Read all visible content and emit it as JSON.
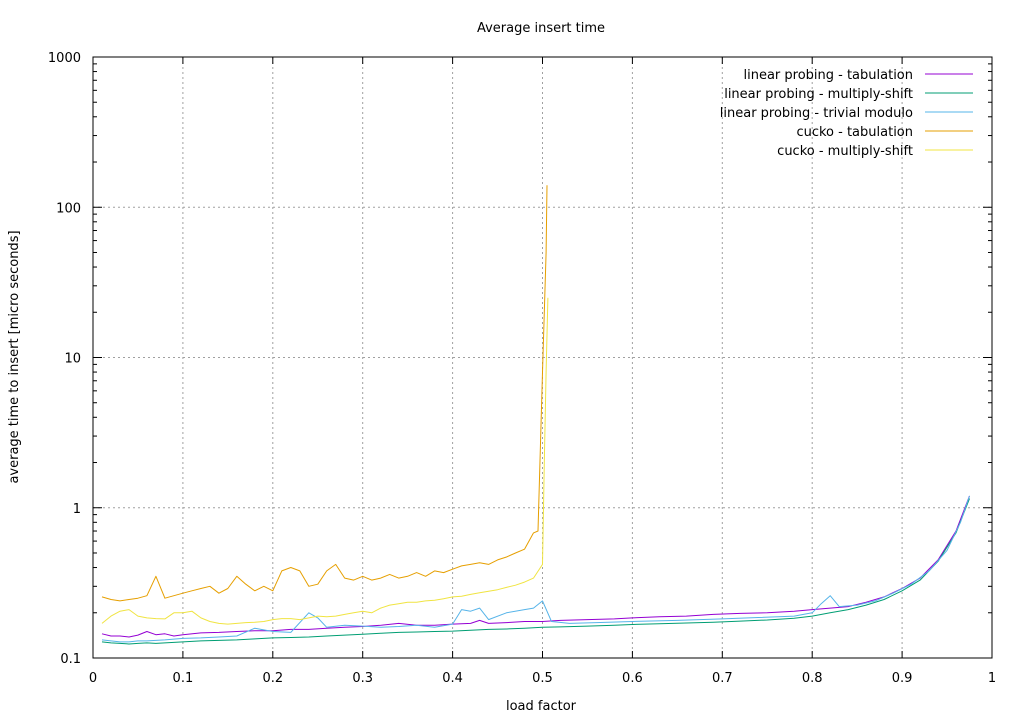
{
  "chart_data": {
    "type": "line",
    "title": "Average insert time",
    "xlabel": "load factor",
    "ylabel": "average time to insert [micro seconds]",
    "xlim": [
      0,
      1
    ],
    "ylim": [
      0.1,
      1000
    ],
    "yscale": "log",
    "grid": true,
    "legend_position": "top-right",
    "x_ticks": [
      "0",
      "0.1",
      "0.2",
      "0.3",
      "0.4",
      "0.5",
      "0.6",
      "0.7",
      "0.8",
      "0.9",
      "1"
    ],
    "y_ticks": [
      "0.1",
      "1",
      "10",
      "100",
      "1000"
    ],
    "series": [
      {
        "name": "linear probing - tabulation",
        "color": "#9400d3",
        "points": [
          [
            0.01,
            0.145
          ],
          [
            0.02,
            0.14
          ],
          [
            0.03,
            0.14
          ],
          [
            0.04,
            0.138
          ],
          [
            0.05,
            0.142
          ],
          [
            0.06,
            0.15
          ],
          [
            0.07,
            0.143
          ],
          [
            0.08,
            0.145
          ],
          [
            0.09,
            0.14
          ],
          [
            0.1,
            0.143
          ],
          [
            0.12,
            0.147
          ],
          [
            0.14,
            0.148
          ],
          [
            0.16,
            0.15
          ],
          [
            0.18,
            0.152
          ],
          [
            0.2,
            0.152
          ],
          [
            0.22,
            0.155
          ],
          [
            0.24,
            0.155
          ],
          [
            0.26,
            0.158
          ],
          [
            0.28,
            0.16
          ],
          [
            0.3,
            0.162
          ],
          [
            0.32,
            0.165
          ],
          [
            0.34,
            0.17
          ],
          [
            0.36,
            0.165
          ],
          [
            0.38,
            0.165
          ],
          [
            0.4,
            0.168
          ],
          [
            0.42,
            0.17
          ],
          [
            0.43,
            0.178
          ],
          [
            0.44,
            0.17
          ],
          [
            0.46,
            0.172
          ],
          [
            0.48,
            0.175
          ],
          [
            0.5,
            0.175
          ],
          [
            0.52,
            0.178
          ],
          [
            0.55,
            0.18
          ],
          [
            0.58,
            0.182
          ],
          [
            0.6,
            0.185
          ],
          [
            0.63,
            0.188
          ],
          [
            0.66,
            0.19
          ],
          [
            0.69,
            0.195
          ],
          [
            0.72,
            0.198
          ],
          [
            0.75,
            0.2
          ],
          [
            0.78,
            0.205
          ],
          [
            0.8,
            0.21
          ],
          [
            0.82,
            0.215
          ],
          [
            0.84,
            0.22
          ],
          [
            0.86,
            0.235
          ],
          [
            0.88,
            0.255
          ],
          [
            0.9,
            0.29
          ],
          [
            0.92,
            0.34
          ],
          [
            0.94,
            0.45
          ],
          [
            0.96,
            0.7
          ],
          [
            0.975,
            1.2
          ]
        ]
      },
      {
        "name": "linear probing - multiply-shift",
        "color": "#009e73",
        "points": [
          [
            0.01,
            0.128
          ],
          [
            0.02,
            0.126
          ],
          [
            0.03,
            0.125
          ],
          [
            0.04,
            0.124
          ],
          [
            0.05,
            0.125
          ],
          [
            0.06,
            0.126
          ],
          [
            0.07,
            0.125
          ],
          [
            0.08,
            0.126
          ],
          [
            0.09,
            0.127
          ],
          [
            0.1,
            0.128
          ],
          [
            0.12,
            0.13
          ],
          [
            0.14,
            0.131
          ],
          [
            0.16,
            0.132
          ],
          [
            0.18,
            0.134
          ],
          [
            0.2,
            0.136
          ],
          [
            0.22,
            0.137
          ],
          [
            0.24,
            0.138
          ],
          [
            0.26,
            0.14
          ],
          [
            0.28,
            0.142
          ],
          [
            0.3,
            0.144
          ],
          [
            0.32,
            0.146
          ],
          [
            0.34,
            0.148
          ],
          [
            0.36,
            0.149
          ],
          [
            0.38,
            0.15
          ],
          [
            0.4,
            0.151
          ],
          [
            0.42,
            0.153
          ],
          [
            0.44,
            0.155
          ],
          [
            0.46,
            0.156
          ],
          [
            0.48,
            0.158
          ],
          [
            0.5,
            0.16
          ],
          [
            0.52,
            0.161
          ],
          [
            0.55,
            0.163
          ],
          [
            0.58,
            0.165
          ],
          [
            0.6,
            0.167
          ],
          [
            0.63,
            0.169
          ],
          [
            0.66,
            0.171
          ],
          [
            0.69,
            0.173
          ],
          [
            0.72,
            0.176
          ],
          [
            0.75,
            0.179
          ],
          [
            0.78,
            0.184
          ],
          [
            0.8,
            0.19
          ],
          [
            0.82,
            0.2
          ],
          [
            0.84,
            0.21
          ],
          [
            0.86,
            0.225
          ],
          [
            0.88,
            0.245
          ],
          [
            0.9,
            0.28
          ],
          [
            0.92,
            0.33
          ],
          [
            0.94,
            0.44
          ],
          [
            0.96,
            0.68
          ],
          [
            0.975,
            1.15
          ]
        ]
      },
      {
        "name": "linear probing - trivial modulo",
        "color": "#56b4e9",
        "points": [
          [
            0.01,
            0.132
          ],
          [
            0.02,
            0.13
          ],
          [
            0.03,
            0.128
          ],
          [
            0.04,
            0.128
          ],
          [
            0.05,
            0.13
          ],
          [
            0.06,
            0.13
          ],
          [
            0.08,
            0.132
          ],
          [
            0.1,
            0.135
          ],
          [
            0.12,
            0.136
          ],
          [
            0.14,
            0.138
          ],
          [
            0.16,
            0.14
          ],
          [
            0.18,
            0.158
          ],
          [
            0.2,
            0.15
          ],
          [
            0.22,
            0.148
          ],
          [
            0.24,
            0.2
          ],
          [
            0.25,
            0.185
          ],
          [
            0.26,
            0.16
          ],
          [
            0.28,
            0.165
          ],
          [
            0.3,
            0.163
          ],
          [
            0.32,
            0.16
          ],
          [
            0.34,
            0.162
          ],
          [
            0.36,
            0.165
          ],
          [
            0.38,
            0.16
          ],
          [
            0.4,
            0.168
          ],
          [
            0.41,
            0.21
          ],
          [
            0.42,
            0.205
          ],
          [
            0.43,
            0.215
          ],
          [
            0.44,
            0.18
          ],
          [
            0.46,
            0.2
          ],
          [
            0.48,
            0.21
          ],
          [
            0.49,
            0.215
          ],
          [
            0.5,
            0.24
          ],
          [
            0.51,
            0.175
          ],
          [
            0.53,
            0.17
          ],
          [
            0.56,
            0.172
          ],
          [
            0.6,
            0.175
          ],
          [
            0.65,
            0.178
          ],
          [
            0.7,
            0.182
          ],
          [
            0.74,
            0.186
          ],
          [
            0.78,
            0.19
          ],
          [
            0.8,
            0.2
          ],
          [
            0.81,
            0.23
          ],
          [
            0.82,
            0.26
          ],
          [
            0.83,
            0.22
          ],
          [
            0.85,
            0.225
          ],
          [
            0.87,
            0.24
          ],
          [
            0.89,
            0.27
          ],
          [
            0.91,
            0.31
          ],
          [
            0.93,
            0.38
          ],
          [
            0.95,
            0.52
          ],
          [
            0.965,
            0.8
          ],
          [
            0.975,
            1.2
          ]
        ]
      },
      {
        "name": "cucko - tabulation",
        "color": "#e69f00",
        "points": [
          [
            0.01,
            0.255
          ],
          [
            0.02,
            0.245
          ],
          [
            0.03,
            0.24
          ],
          [
            0.04,
            0.245
          ],
          [
            0.05,
            0.25
          ],
          [
            0.06,
            0.26
          ],
          [
            0.07,
            0.35
          ],
          [
            0.08,
            0.25
          ],
          [
            0.09,
            0.26
          ],
          [
            0.1,
            0.27
          ],
          [
            0.11,
            0.28
          ],
          [
            0.12,
            0.29
          ],
          [
            0.13,
            0.3
          ],
          [
            0.14,
            0.27
          ],
          [
            0.15,
            0.29
          ],
          [
            0.16,
            0.35
          ],
          [
            0.17,
            0.31
          ],
          [
            0.18,
            0.28
          ],
          [
            0.19,
            0.3
          ],
          [
            0.2,
            0.28
          ],
          [
            0.21,
            0.38
          ],
          [
            0.22,
            0.4
          ],
          [
            0.23,
            0.38
          ],
          [
            0.24,
            0.3
          ],
          [
            0.25,
            0.31
          ],
          [
            0.26,
            0.38
          ],
          [
            0.27,
            0.42
          ],
          [
            0.28,
            0.34
          ],
          [
            0.29,
            0.33
          ],
          [
            0.3,
            0.35
          ],
          [
            0.31,
            0.33
          ],
          [
            0.32,
            0.34
          ],
          [
            0.33,
            0.36
          ],
          [
            0.34,
            0.34
          ],
          [
            0.35,
            0.35
          ],
          [
            0.36,
            0.37
          ],
          [
            0.37,
            0.35
          ],
          [
            0.38,
            0.38
          ],
          [
            0.39,
            0.37
          ],
          [
            0.4,
            0.39
          ],
          [
            0.41,
            0.41
          ],
          [
            0.42,
            0.42
          ],
          [
            0.43,
            0.43
          ],
          [
            0.44,
            0.42
          ],
          [
            0.45,
            0.45
          ],
          [
            0.46,
            0.47
          ],
          [
            0.47,
            0.5
          ],
          [
            0.48,
            0.53
          ],
          [
            0.49,
            0.68
          ],
          [
            0.495,
            0.7
          ],
          [
            0.498,
            3
          ],
          [
            0.5,
            8
          ],
          [
            0.502,
            20
          ],
          [
            0.504,
            50
          ],
          [
            0.505,
            140
          ]
        ]
      },
      {
        "name": "cucko - multiply-shift",
        "color": "#f0e442",
        "points": [
          [
            0.01,
            0.17
          ],
          [
            0.02,
            0.19
          ],
          [
            0.03,
            0.205
          ],
          [
            0.04,
            0.21
          ],
          [
            0.05,
            0.19
          ],
          [
            0.06,
            0.185
          ],
          [
            0.07,
            0.183
          ],
          [
            0.08,
            0.182
          ],
          [
            0.09,
            0.2
          ],
          [
            0.1,
            0.2
          ],
          [
            0.11,
            0.205
          ],
          [
            0.12,
            0.185
          ],
          [
            0.13,
            0.175
          ],
          [
            0.14,
            0.17
          ],
          [
            0.15,
            0.168
          ],
          [
            0.16,
            0.17
          ],
          [
            0.17,
            0.172
          ],
          [
            0.18,
            0.173
          ],
          [
            0.19,
            0.175
          ],
          [
            0.2,
            0.18
          ],
          [
            0.21,
            0.183
          ],
          [
            0.22,
            0.183
          ],
          [
            0.23,
            0.18
          ],
          [
            0.24,
            0.185
          ],
          [
            0.25,
            0.19
          ],
          [
            0.26,
            0.188
          ],
          [
            0.27,
            0.19
          ],
          [
            0.28,
            0.195
          ],
          [
            0.29,
            0.2
          ],
          [
            0.3,
            0.205
          ],
          [
            0.31,
            0.2
          ],
          [
            0.32,
            0.215
          ],
          [
            0.33,
            0.225
          ],
          [
            0.34,
            0.23
          ],
          [
            0.35,
            0.235
          ],
          [
            0.36,
            0.235
          ],
          [
            0.37,
            0.24
          ],
          [
            0.38,
            0.242
          ],
          [
            0.39,
            0.248
          ],
          [
            0.4,
            0.255
          ],
          [
            0.41,
            0.258
          ],
          [
            0.42,
            0.265
          ],
          [
            0.43,
            0.272
          ],
          [
            0.44,
            0.278
          ],
          [
            0.45,
            0.285
          ],
          [
            0.46,
            0.295
          ],
          [
            0.47,
            0.305
          ],
          [
            0.48,
            0.32
          ],
          [
            0.49,
            0.34
          ],
          [
            0.5,
            0.42
          ],
          [
            0.502,
            2
          ],
          [
            0.504,
            8
          ],
          [
            0.506,
            25
          ]
        ]
      }
    ]
  }
}
